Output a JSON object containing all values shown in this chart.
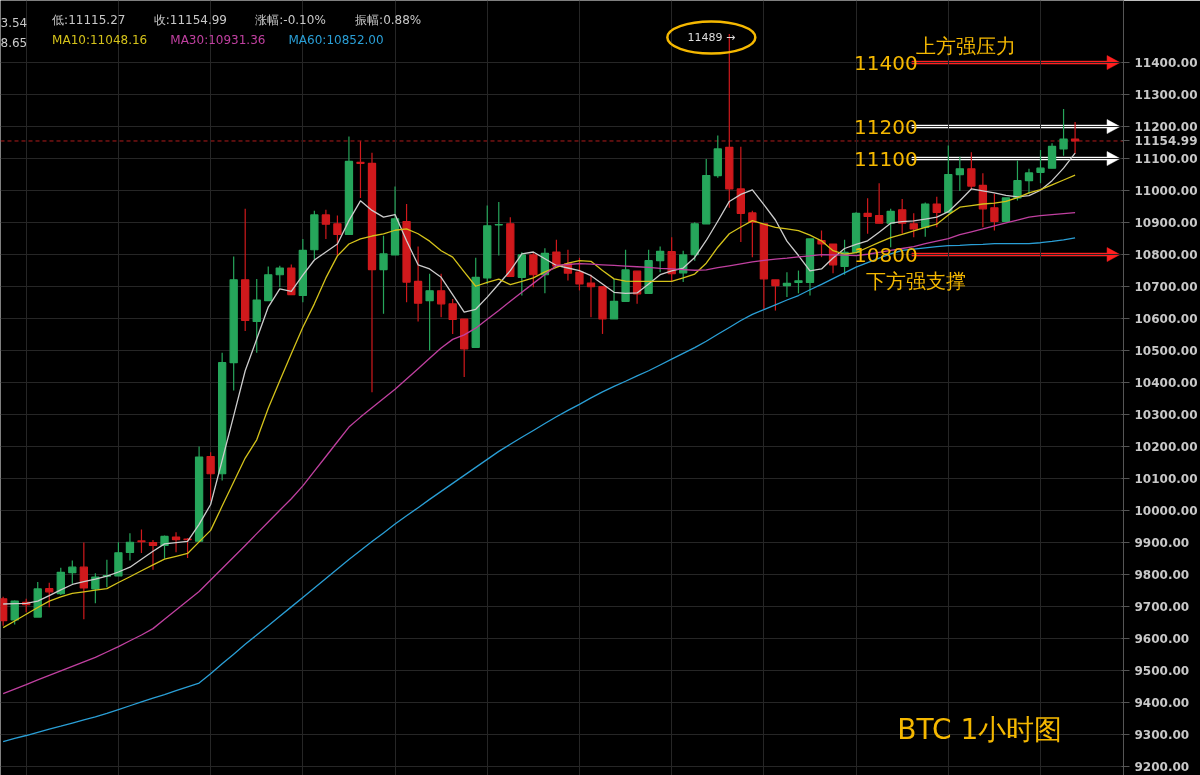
{
  "chart_data": {
    "type": "candlestick",
    "title": "BTC   1小时图",
    "categories": [
      null,
      null,
      null,
      null,
      null,
      null,
      null,
      null,
      null,
      null,
      null,
      null,
      null,
      null,
      null,
      null,
      null,
      null,
      null,
      null,
      null,
      null,
      null,
      null,
      null,
      null,
      null,
      null,
      null,
      null,
      null,
      null,
      null,
      null,
      null,
      null,
      null,
      null,
      null,
      null,
      null,
      null,
      null,
      null,
      null,
      null,
      null,
      null,
      null,
      null,
      null,
      null,
      null,
      null,
      null,
      null,
      null,
      null,
      null,
      null,
      null,
      null,
      null,
      null,
      null,
      null,
      null,
      null,
      null,
      null,
      null,
      null,
      null,
      null,
      null,
      null,
      null,
      null,
      null,
      null,
      null,
      null,
      null,
      null,
      null,
      null,
      null,
      null,
      null,
      null,
      null,
      null,
      null,
      null
    ],
    "ohlc": [
      [
        9724,
        9731,
        9640,
        9656
      ],
      [
        9658,
        9719,
        9644,
        9717
      ],
      [
        9713,
        9724,
        9682,
        9706
      ],
      [
        9667,
        9777,
        9667,
        9755
      ],
      [
        9756,
        9774,
        9698,
        9746
      ],
      [
        9740,
        9821,
        9736,
        9807
      ],
      [
        9806,
        9844,
        9771,
        9823
      ],
      [
        9823,
        9900,
        9660,
        9758
      ],
      [
        9755,
        9804,
        9710,
        9792
      ],
      [
        9795,
        9846,
        9760,
        9797
      ],
      [
        9796,
        9901,
        9796,
        9868
      ],
      [
        9869,
        9929,
        9844,
        9901
      ],
      [
        9905,
        9941,
        9867,
        9903
      ],
      [
        9900,
        9908,
        9815,
        9891
      ],
      [
        9891,
        9922,
        9849,
        9919
      ],
      [
        9917,
        9932,
        9870,
        9909
      ],
      [
        9911,
        9914,
        9852,
        9909
      ],
      [
        9904,
        10200,
        9904,
        10167
      ],
      [
        10169,
        10182,
        10031,
        10115
      ],
      [
        10115,
        10493,
        10094,
        10462
      ],
      [
        10462,
        10794,
        10375,
        10721
      ],
      [
        10721,
        10943,
        10561,
        10594
      ],
      [
        10591,
        10724,
        10493,
        10658
      ],
      [
        10656,
        10763,
        10656,
        10737
      ],
      [
        10737,
        10765,
        10698,
        10758
      ],
      [
        10758,
        10769,
        10675,
        10675
      ],
      [
        10672,
        10849,
        10651,
        10813
      ],
      [
        10815,
        10937,
        10786,
        10924
      ],
      [
        10924,
        10940,
        10849,
        10895
      ],
      [
        10896,
        10922,
        10797,
        10863
      ],
      [
        10863,
        11169,
        10863,
        11091
      ],
      [
        11088,
        11154,
        10977,
        11085
      ],
      [
        11085,
        11118,
        10370,
        10753
      ],
      [
        10753,
        10859,
        10615,
        10802
      ],
      [
        10799,
        11013,
        10799,
        10912
      ],
      [
        10903,
        10958,
        10651,
        10714
      ],
      [
        10716,
        10825,
        10591,
        10648
      ],
      [
        10656,
        10740,
        10500,
        10687
      ],
      [
        10687,
        10740,
        10604,
        10646
      ],
      [
        10646,
        10661,
        10552,
        10597
      ],
      [
        10598,
        10598,
        10417,
        10505
      ],
      [
        10510,
        10790,
        10510,
        10729
      ],
      [
        10727,
        10953,
        10708,
        10890
      ],
      [
        10893,
        10964,
        10797,
        10894
      ],
      [
        10896,
        10917,
        10732,
        10732
      ],
      [
        10729,
        10807,
        10672,
        10799
      ],
      [
        10799,
        10807,
        10698,
        10737
      ],
      [
        10737,
        10820,
        10679,
        10804
      ],
      [
        10808,
        10846,
        10764,
        10764
      ],
      [
        10771,
        10815,
        10719,
        10742
      ],
      [
        10745,
        10790,
        10688,
        10708
      ],
      [
        10711,
        10737,
        10604,
        10700
      ],
      [
        10700,
        10700,
        10552,
        10599
      ],
      [
        10599,
        10724,
        10599,
        10654
      ],
      [
        10654,
        10815,
        10654,
        10752
      ],
      [
        10748,
        10748,
        10646,
        10677
      ],
      [
        10679,
        10815,
        10679,
        10781
      ],
      [
        10781,
        10825,
        10745,
        10810
      ],
      [
        10809,
        10854,
        10714,
        10740
      ],
      [
        10743,
        10812,
        10714,
        10799
      ],
      [
        10800,
        10901,
        10781,
        10896
      ],
      [
        10896,
        11099,
        10896,
        11047
      ],
      [
        11047,
        11172,
        11040,
        11130
      ],
      [
        11135,
        11489,
        10946,
        11005
      ],
      [
        11005,
        11137,
        10839,
        10929
      ],
      [
        10930,
        10937,
        10792,
        10901
      ],
      [
        10896,
        10896,
        10630,
        10724
      ],
      [
        10721,
        10721,
        10625,
        10703
      ],
      [
        10703,
        10745,
        10667,
        10710
      ],
      [
        10713,
        10750,
        10679,
        10718
      ],
      [
        10713,
        10849,
        10672,
        10849
      ],
      [
        10844,
        10875,
        10792,
        10833
      ],
      [
        10833,
        10833,
        10742,
        10768
      ],
      [
        10763,
        10846,
        10737,
        10807
      ],
      [
        10807,
        10932,
        10807,
        10929
      ],
      [
        10929,
        10976,
        10865,
        10919
      ],
      [
        10922,
        11023,
        10898,
        10898
      ],
      [
        10898,
        10943,
        10823,
        10935
      ],
      [
        10940,
        10974,
        10865,
        10898
      ],
      [
        10896,
        10929,
        10854,
        10880
      ],
      [
        10885,
        10963,
        10856,
        10958
      ],
      [
        10958,
        10981,
        10885,
        10932
      ],
      [
        10932,
        11141,
        10932,
        11050
      ],
      [
        11050,
        11106,
        10999,
        11068
      ],
      [
        11068,
        11120,
        11005,
        11014
      ],
      [
        11016,
        11054,
        10885,
        10943
      ],
      [
        10946,
        10990,
        10875,
        10904
      ],
      [
        10904,
        10977,
        10904,
        10977
      ],
      [
        10977,
        11094,
        10969,
        11031
      ],
      [
        11031,
        11068,
        10990,
        11055
      ],
      [
        11057,
        11127,
        11023,
        11070
      ],
      [
        11070,
        11148,
        11070,
        11138
      ],
      [
        11130,
        11255,
        11109,
        11161
      ],
      [
        11161,
        11214,
        11115.27,
        11154.99
      ]
    ],
    "colors": [
      "#d0191c",
      "#26a65b",
      "#d0191c",
      "#26a65b",
      "#d0191c",
      "#26a65b",
      "#26a65b",
      "#d0191c",
      "#26a65b",
      "#26a65b",
      "#26a65b",
      "#26a65b",
      "#d0191c",
      "#d0191c",
      "#26a65b",
      "#d0191c",
      "#d0191c",
      "#26a65b",
      "#d0191c",
      "#26a65b",
      "#26a65b",
      "#d0191c",
      "#26a65b",
      "#26a65b",
      "#26a65b",
      "#d0191c",
      "#26a65b",
      "#26a65b",
      "#d0191c",
      "#d0191c",
      "#26a65b",
      "#d0191c",
      "#d0191c",
      "#26a65b",
      "#26a65b",
      "#d0191c",
      "#d0191c",
      "#26a65b",
      "#d0191c",
      "#d0191c",
      "#d0191c",
      "#26a65b",
      "#26a65b",
      "#26a65b",
      "#d0191c",
      "#26a65b",
      "#d0191c",
      "#26a65b",
      "#d0191c",
      "#d0191c",
      "#d0191c",
      "#d0191c",
      "#d0191c",
      "#26a65b",
      "#26a65b",
      "#d0191c",
      "#26a65b",
      "#26a65b",
      "#d0191c",
      "#26a65b",
      "#26a65b",
      "#26a65b",
      "#26a65b",
      "#d0191c",
      "#d0191c",
      "#d0191c",
      "#d0191c",
      "#d0191c",
      "#26a65b",
      "#26a65b",
      "#26a65b",
      "#d0191c",
      "#d0191c",
      "#26a65b",
      "#26a65b",
      "#d0191c",
      "#d0191c",
      "#26a65b",
      "#d0191c",
      "#d0191c",
      "#26a65b",
      "#d0191c",
      "#26a65b",
      "#26a65b",
      "#d0191c",
      "#d0191c",
      "#d0191c",
      "#26a65b",
      "#26a65b",
      "#26a65b",
      "#26a65b",
      "#26a65b",
      "#26a65b",
      "#d0191c"
    ],
    "series": [
      {
        "type": "line",
        "name": "8.65",
        "color": "#cccccc",
        "values": [
          9708,
          9709,
          9710,
          9717,
          9734,
          9752,
          9769,
          9778,
          9786,
          9795,
          9808,
          9823,
          9848,
          9873,
          9896,
          9900,
          9904,
          9957,
          10019,
          10157,
          10296,
          10437,
          10536,
          10636,
          10693,
          10685,
          10736,
          10783,
          10808,
          10833,
          10906,
          10968,
          10938,
          10917,
          10925,
          10843,
          10768,
          10755,
          10729,
          10675,
          10620,
          10629,
          10667,
          10708,
          10750,
          10802,
          10808,
          10787,
          10766,
          10758,
          10750,
          10734,
          10708,
          10682,
          10679,
          10680,
          10708,
          10737,
          10749,
          10758,
          10791,
          10844,
          10904,
          10966,
          10988,
          11002,
          10956,
          10908,
          10842,
          10797,
          10749,
          10755,
          10789,
          10819,
          10832,
          10843,
          10870,
          10898,
          10903,
          10905,
          10911,
          10917,
          10934,
          10968,
          11005,
          10999,
          10993,
          10985,
          10980,
          10984,
          11001,
          11031,
          11070,
          11117
        ]
      },
      {
        "type": "line",
        "name": "MA10:11048.16",
        "color": "#d4c21a",
        "values": [
          9634,
          9655,
          9676,
          9697,
          9717,
          9730,
          9741,
          9746,
          9751,
          9756,
          9775,
          9793,
          9812,
          9830,
          9848,
          9857,
          9866,
          9902,
          9938,
          10014,
          10089,
          10164,
          10221,
          10320,
          10406,
          10490,
          10573,
          10646,
          10727,
          10796,
          10833,
          10849,
          10858,
          10865,
          10876,
          10880,
          10865,
          10842,
          10812,
          10792,
          10746,
          10701,
          10713,
          10723,
          10706,
          10716,
          10727,
          10746,
          10760,
          10773,
          10781,
          10779,
          10750,
          10724,
          10717,
          10716,
          10716,
          10716,
          10716,
          10727,
          10739,
          10773,
          10823,
          10865,
          10886,
          10906,
          10895,
          10885,
          10880,
          10875,
          10861,
          10843,
          10812,
          10801,
          10806,
          10822,
          10838,
          10853,
          10863,
          10874,
          10885,
          10895,
          10924,
          10948,
          10953,
          10958,
          10961,
          10966,
          10978,
          10993,
          11003,
          11018,
          11033,
          11048
        ]
      },
      {
        "type": "line",
        "name": "MA30:10931.36",
        "color": "#c040a0",
        "values": [
          9428,
          9442,
          9456,
          9471,
          9485,
          9499,
          9513,
          9527,
          9541,
          9558,
          9575,
          9593,
          9611,
          9631,
          9660,
          9689,
          9718,
          9747,
          9783,
          9819,
          9855,
          9891,
          9928,
          9964,
          10001,
          10037,
          10077,
          10123,
          10169,
          10215,
          10261,
          10292,
          10321,
          10350,
          10379,
          10411,
          10443,
          10476,
          10508,
          10535,
          10549,
          10570,
          10598,
          10625,
          10654,
          10682,
          10710,
          10738,
          10766,
          10769,
          10772,
          10770,
          10768,
          10766,
          10764,
          10762,
          10760,
          10757,
          10755,
          10753,
          10751,
          10752,
          10759,
          10765,
          10771,
          10777,
          10782,
          10786,
          10789,
          10793,
          10796,
          10800,
          10799,
          10798,
          10797,
          10801,
          10807,
          10813,
          10819,
          10825,
          10834,
          10842,
          10850,
          10862,
          10871,
          10880,
          10890,
          10899,
          10908,
          10917,
          10922,
          10925,
          10928,
          10931
        ]
      },
      {
        "type": "line",
        "name": "MA60:10852.00",
        "color": "#2a9fd6",
        "values": [
          9278,
          9288,
          9297,
          9307,
          9317,
          9326,
          9336,
          9346,
          9355,
          9366,
          9378,
          9390,
          9402,
          9414,
          9425,
          9437,
          9449,
          9461,
          9490,
          9521,
          9551,
          9582,
          9611,
          9640,
          9670,
          9699,
          9728,
          9758,
          9788,
          9817,
          9847,
          9875,
          9903,
          9930,
          9958,
          9984,
          10009,
          10035,
          10060,
          10085,
          10110,
          10135,
          10160,
          10185,
          10207,
          10229,
          10250,
          10272,
          10293,
          10313,
          10332,
          10352,
          10371,
          10388,
          10404,
          10421,
          10437,
          10455,
          10473,
          10491,
          10509,
          10529,
          10551,
          10572,
          10594,
          10613,
          10628,
          10643,
          10658,
          10672,
          10690,
          10707,
          10725,
          10743,
          10761,
          10775,
          10789,
          10802,
          10813,
          10817,
          10821,
          10825,
          10828,
          10829,
          10831,
          10832,
          10834,
          10834,
          10834,
          10834,
          10837,
          10841,
          10846,
          10852
        ]
      }
    ],
    "ylim": [
      9172,
      11594
    ],
    "yticks": [
      {
        "value": 9200,
        "label": "9200.00"
      },
      {
        "value": 9300,
        "label": "9300.00"
      },
      {
        "value": 9400,
        "label": "9400.00"
      },
      {
        "value": 9500,
        "label": "9500.00"
      },
      {
        "value": 9600,
        "label": "9600.00"
      },
      {
        "value": 9700,
        "label": "9700.00"
      },
      {
        "value": 9800,
        "label": "9800.00"
      },
      {
        "value": 9900,
        "label": "9900.00"
      },
      {
        "value": 10000,
        "label": "10000.00"
      },
      {
        "value": 10100,
        "label": "10100.00"
      },
      {
        "value": 10200,
        "label": "10200.00"
      },
      {
        "value": 10300,
        "label": "10300.00"
      },
      {
        "value": 10400,
        "label": "10400.00"
      },
      {
        "value": 10500,
        "label": "10500.00"
      },
      {
        "value": 10600,
        "label": "10600.00"
      },
      {
        "value": 10700,
        "label": "10700.00"
      },
      {
        "value": 10800,
        "label": "10800.00"
      },
      {
        "value": 10900,
        "label": "10900.00"
      },
      {
        "value": 11000,
        "label": "11000.00"
      },
      {
        "value": 11100,
        "label": "11100.00"
      },
      {
        "value": 11200,
        "label": "11200.00"
      },
      {
        "value": 11300,
        "label": "11300.00"
      },
      {
        "value": 11400,
        "label": "11400.00"
      }
    ],
    "tick_labels": "y",
    "grid": true,
    "ref_lines": [
      {
        "axis": "y",
        "value": 11154.99,
        "label": "11154.99",
        "color": "#b01c1c",
        "line_style": "dashed"
      },
      {
        "axis": "y",
        "value": 11400,
        "label": "11400",
        "color": "#ff2020",
        "line_style": "solid"
      },
      {
        "axis": "y",
        "value": 11200,
        "label": "11200",
        "color": "#ffffff",
        "line_style": "solid"
      },
      {
        "axis": "y",
        "value": 11100,
        "label": "11100",
        "color": "#ffffff",
        "line_style": "solid"
      },
      {
        "axis": "y",
        "value": 10800,
        "label": "10800",
        "color": "#ff2020",
        "line_style": "solid"
      }
    ],
    "annotations": [
      "3.54",
      "低:11115.27",
      "收:11154.99",
      "涨幅:-0.10%",
      "振幅:0.88%",
      "11489 →",
      "上方强压力",
      "下方强支撑"
    ]
  }
}
